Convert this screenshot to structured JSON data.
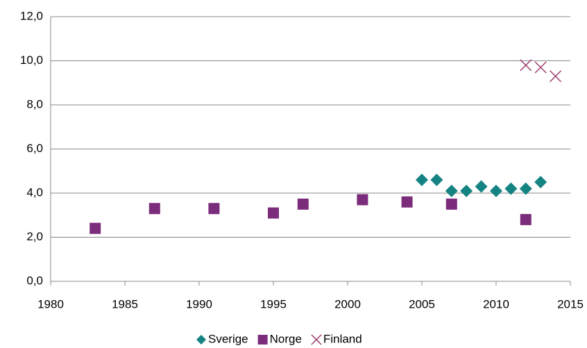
{
  "chart_data": {
    "type": "scatter",
    "series": [
      {
        "name": "Sverige",
        "color": "#168383",
        "marker": "diamond",
        "x": [
          2005,
          2006,
          2007,
          2008,
          2009,
          2010,
          2011,
          2012,
          2013
        ],
        "values": [
          4.6,
          4.6,
          4.1,
          4.1,
          4.3,
          4.1,
          4.2,
          4.2,
          4.5
        ]
      },
      {
        "name": "Norge",
        "color": "#7b2c7b",
        "marker": "square",
        "x": [
          1983,
          1987,
          1991,
          1995,
          1997,
          2001,
          2004,
          2007,
          2012
        ],
        "values": [
          2.4,
          3.3,
          3.3,
          3.1,
          3.5,
          3.7,
          3.6,
          3.5,
          2.8
        ]
      },
      {
        "name": "Finland",
        "color": "#9a3a6a",
        "marker": "x",
        "x": [
          2012,
          2013,
          2014
        ],
        "values": [
          9.8,
          9.7,
          9.3
        ]
      }
    ],
    "xlim": [
      1980,
      2015
    ],
    "xticks": [
      1980,
      1985,
      1990,
      1995,
      2000,
      2005,
      2010,
      2015
    ],
    "ylim": [
      0,
      12
    ],
    "yticks": [
      {
        "value": 0,
        "label": "0,0"
      },
      {
        "value": 2,
        "label": "2,0"
      },
      {
        "value": 4,
        "label": "4,0"
      },
      {
        "value": 6,
        "label": "6,0"
      },
      {
        "value": 8,
        "label": "8,0"
      },
      {
        "value": 10,
        "label": "10,0"
      },
      {
        "value": 12,
        "label": "12,0"
      }
    ],
    "grid": true,
    "legend": "bottom"
  }
}
